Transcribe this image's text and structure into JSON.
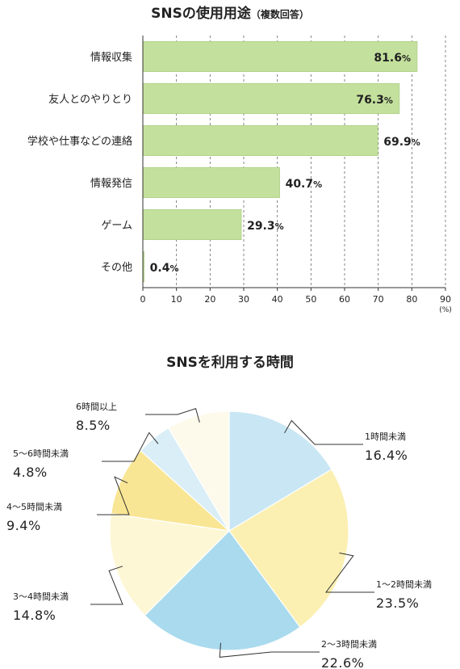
{
  "chart_data": [
    {
      "type": "bar",
      "orientation": "horizontal",
      "title": "SNSの使用用途",
      "subtitle": "（複数回答）",
      "categories": [
        "情報収集",
        "友人とのやりとり",
        "学校や仕事などの連絡",
        "情報発信",
        "ゲーム",
        "その他"
      ],
      "values": [
        81.6,
        76.3,
        69.9,
        40.7,
        29.3,
        0.4
      ],
      "value_suffix": "%",
      "xlim": [
        0,
        90
      ],
      "xticks": [
        0,
        10,
        20,
        30,
        40,
        50,
        60,
        70,
        80,
        90
      ],
      "xunit": "(%)",
      "grid": "vertical dashed",
      "bar_color": "#c3e19c"
    },
    {
      "type": "pie",
      "title": "SNSを利用する時間",
      "start": "top, clockwise",
      "slices": [
        {
          "label": "1時間未満",
          "value": 16.4,
          "color": "#c9e6f4"
        },
        {
          "label": "1〜2時間未満",
          "value": 23.5,
          "color": "#fbf0b2"
        },
        {
          "label": "2〜3時間未満",
          "value": 22.6,
          "color": "#a9daee"
        },
        {
          "label": "3〜4時間未満",
          "value": 14.8,
          "color": "#fdf7d6"
        },
        {
          "label": "4〜5時間未満",
          "value": 9.4,
          "color": "#f9e694"
        },
        {
          "label": "5〜6時間未満",
          "value": 4.8,
          "color": "#d9eef7"
        },
        {
          "label": "6時間以上",
          "value": 8.5,
          "color": "#fdfaeb"
        }
      ],
      "value_suffix": "%"
    }
  ]
}
